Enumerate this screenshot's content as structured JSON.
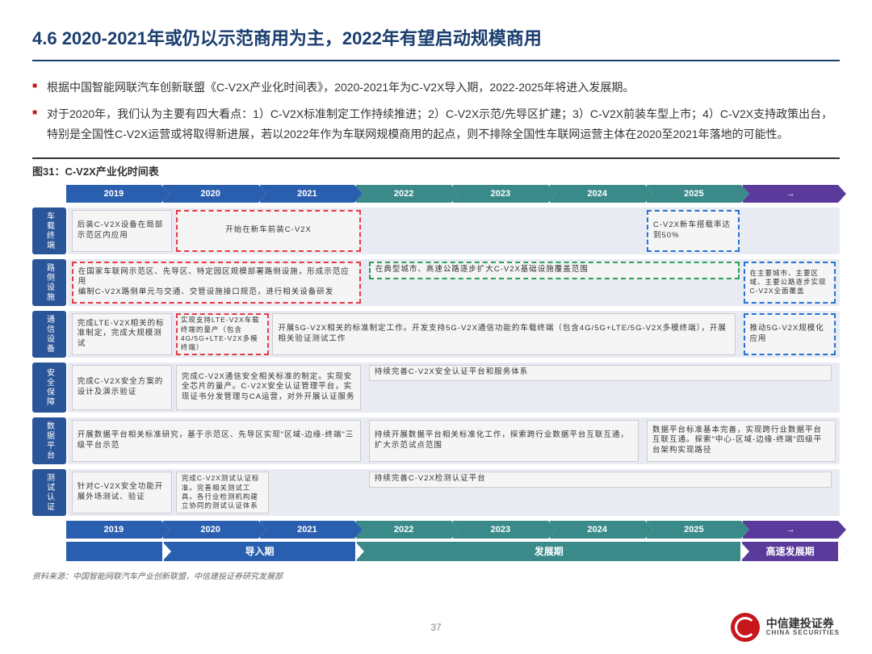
{
  "title": "4.6 2020-2021年或仍以示范商用为主，2022年有望启动规模商用",
  "bullets": [
    "根据中国智能网联汽车创新联盟《C-V2X产业化时间表》，2020-2021年为C-V2X导入期，2022-2025年将进入发展期。",
    "对于2020年，我们认为主要有四大看点：1）C-V2X标准制定工作持续推进；2）C-V2X示范/先导区扩建；3）C-V2X前装车型上市；4）C-V2X支持政策出台，特别是全国性C-V2X运营或将取得新进展，若以2022年作为车联网规模商用的起点，则不排除全国性车联网运营主体在2020至2021年落地的可能性。"
  ],
  "figtitle": "图31：C-V2X产业化时间表",
  "years": [
    "2019",
    "2020",
    "2021",
    "2022",
    "2023",
    "2024",
    "2025",
    "→"
  ],
  "yearcolors": [
    "#2a5fb0",
    "#2a5fb0",
    "#2a5fb0",
    "#3a8a8a",
    "#3a8a8a",
    "#3a8a8a",
    "#3a8a8a",
    "#5a3a9a"
  ],
  "rowlabels": [
    "车载终端",
    "路侧设施",
    "通信设备",
    "安全保障",
    "数据平台",
    "测试认证"
  ],
  "r1": {
    "b1": "后装C-V2X设备在局部示范区内应用",
    "b2": "开始在新车前装C-V2X",
    "b3": "C-V2X新车搭载率达到50%"
  },
  "r2": {
    "b1": "在国家车联网示范区、先导区、特定园区规模部署路侧设施，形成示范应用\n编制C-V2X路侧单元与交通、交管设施接口规范，进行相关设备研发",
    "b2": "在典型城市、高速公路逐步扩大C-V2X基础设施覆盖范围",
    "b3": "在主要城市、主要区域、主要公路逐步实现C-V2X全面覆盖"
  },
  "r3": {
    "b1": "完成LTE-V2X相关的标准制定，完成大规模测试",
    "b2": "实现支持LTE-V2X车载终端的量产（包含4G/5G+LTE-V2X多模终端）",
    "b3": "开展5G-V2X相关的标准制定工作。开发支持5G-V2X通信功能的车载终端（包含4G/5G+LTE/5G-V2X多模终端），开展相关验证测试工作",
    "b4": "推动5G-V2X规模化应用"
  },
  "r4": {
    "b1": "完成C-V2X安全方案的设计及演示验证",
    "b2": "完成C-V2X通信安全相关标准的制定。实现安全芯片的量产。C-V2X安全认证管理平台，实现证书分发管理与CA运营，对外开展认证服务",
    "b3": "持续完善C-V2X安全认证平台和服务体系"
  },
  "r5": {
    "b1": "开展数据平台相关标准研究，基于示范区、先导区实现\"区域-边缘-终端\"三级平台示范",
    "b2": "持续开展数据平台相关标准化工作，探索跨行业数据平台互联互通，扩大示范试点范围",
    "b3": "数据平台标准基本完善，实现跨行业数据平台互联互通。探索\"中心-区域-边缘-终端\"四级平台架构实现路径"
  },
  "r6": {
    "b1": "针对C-V2X安全功能开展外场测试、验证",
    "b2": "完成C-V2X测试认证标准。完善相关测试工具。各行业检测机构建立协同的测试认证体系",
    "b3": "持续完善C-V2X检测认证平台"
  },
  "phases": [
    {
      "label": "",
      "color": "#2a5fb0",
      "flex": 1
    },
    {
      "label": "导入期",
      "color": "#2a5fb0",
      "flex": 2
    },
    {
      "label": "发展期",
      "color": "#3a8a8a",
      "flex": 4
    },
    {
      "label": "高速发展期",
      "color": "#5a3a9a",
      "flex": 1
    }
  ],
  "source": "资料来源：中国智能网联汽车产业创新联盟，中信建投证券研究发展部",
  "pagenum": "37",
  "logo": {
    "cn": "中信建投证券",
    "en": "CHINA SECURITIES"
  }
}
